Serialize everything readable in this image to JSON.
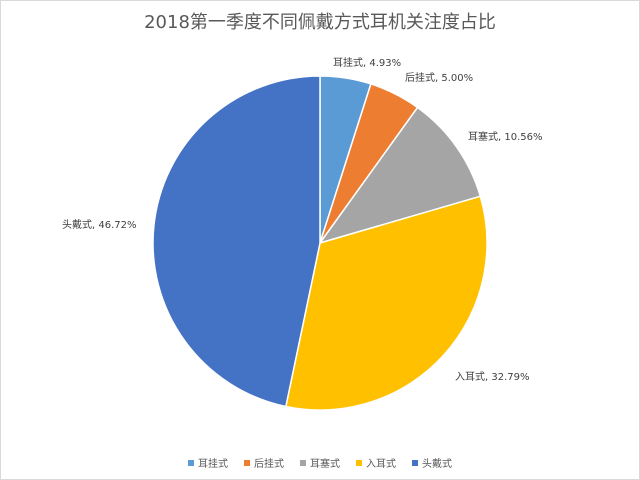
{
  "chart_data": {
    "type": "pie",
    "title": "2018第一季度不同佩戴方式耳机关注度占比",
    "categories": [
      "耳挂式",
      "后挂式",
      "耳塞式",
      "入耳式",
      "头戴式"
    ],
    "values": [
      4.93,
      5.0,
      10.56,
      32.79,
      46.72
    ],
    "data_labels": [
      "耳挂式, 4.93%",
      "后挂式, 5.00%",
      "耳塞式, 10.56%",
      "入耳式, 32.79%",
      "头戴式, 46.72%"
    ],
    "colors": [
      "#5b9bd5",
      "#ed7d31",
      "#a5a5a5",
      "#ffc000",
      "#4472c4"
    ],
    "legend_position": "bottom"
  }
}
